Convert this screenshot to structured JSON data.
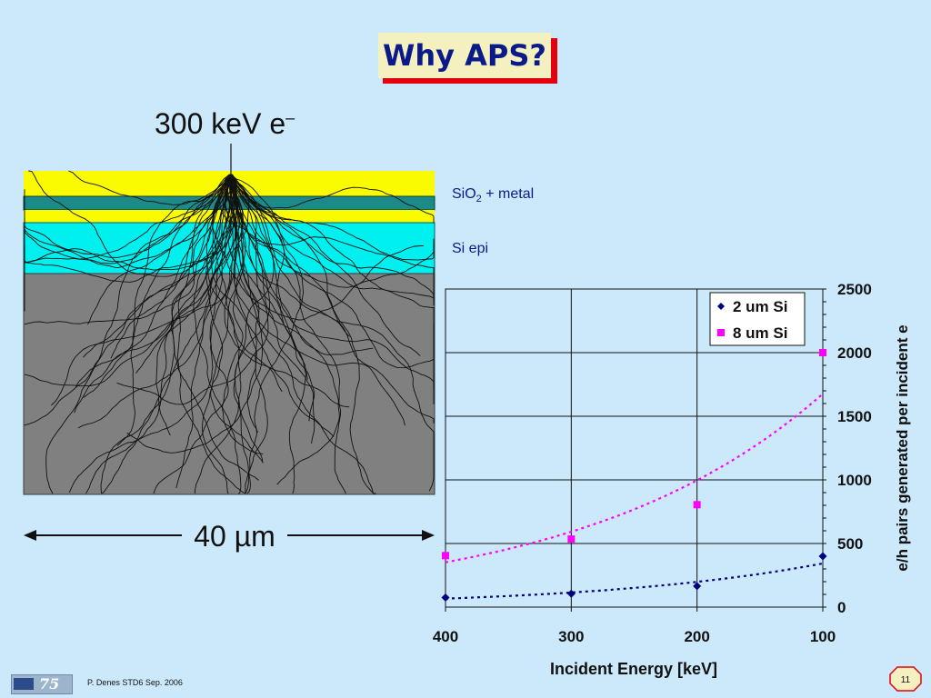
{
  "slide": {
    "title": "Why APS?",
    "beam_label": "300 keV e",
    "beam_label_sup": "–",
    "layer_sio2_label": "SiO",
    "layer_sio2_sub": "2",
    "layer_sio2_rest": " + metal",
    "layer_si_epi_label": "Si epi",
    "width_label": "40 µm",
    "footer": "P. Denes STD6 Sep. 2006",
    "logo_number": "75",
    "page_number": "11"
  },
  "colors": {
    "background": "#cce9fb",
    "title_text": "#0b1a8a",
    "title_shadow": "#e3000f",
    "oxide_yellow": "#fafa00",
    "metal_teal": "#1d8a8a",
    "epi_cyan": "#00f0f0",
    "substrate_gray": "#808080",
    "series_2um": "#000080",
    "series_8um": "#ff00ff"
  },
  "chart_data": {
    "type": "scatter",
    "x_reversed": true,
    "y_axis_position": "right",
    "xlabel": "Incident Energy [keV]",
    "ylabel": "e/h pairs generated per incident e",
    "xlim": [
      100,
      400
    ],
    "ylim": [
      0,
      2500
    ],
    "x_ticks": [
      400,
      300,
      200,
      100
    ],
    "y_ticks": [
      0,
      500,
      1000,
      1500,
      2000,
      2500
    ],
    "grid": true,
    "legend_position": "top-right",
    "series": [
      {
        "name": "2 um Si",
        "marker": "diamond",
        "color": "#000080",
        "x": [
          400,
          300,
          200,
          100
        ],
        "y": [
          75,
          105,
          165,
          400
        ]
      },
      {
        "name": "8 um Si",
        "marker": "square",
        "color": "#ff00ff",
        "x": [
          400,
          300,
          200,
          100
        ],
        "y": [
          405,
          535,
          805,
          2000
        ]
      }
    ]
  }
}
